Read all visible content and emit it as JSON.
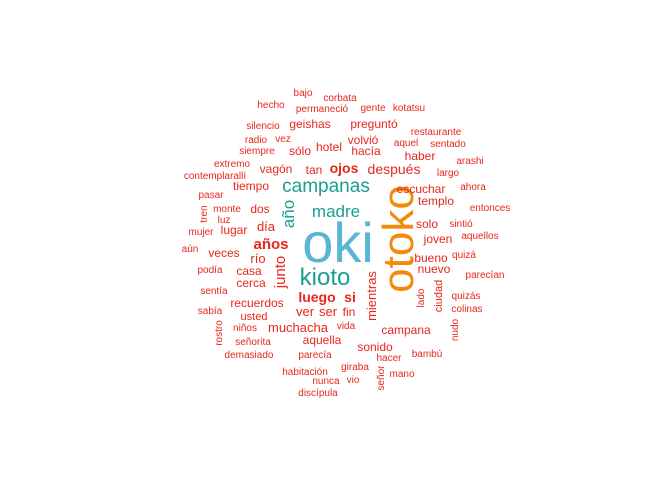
{
  "palette": {
    "cyan": "#5ab4d4",
    "orange": "#f28a0c",
    "teal": "#1a9e8f",
    "red": "#e8261e"
  },
  "words": [
    {
      "text": "oki",
      "color": "cyan"
    },
    {
      "text": "otoko",
      "color": "orange"
    },
    {
      "text": "kioto",
      "color": "teal"
    },
    {
      "text": "campanas",
      "color": "teal"
    },
    {
      "text": "año",
      "color": "teal"
    },
    {
      "text": "madre",
      "color": "teal"
    },
    {
      "text": "años",
      "color": "red"
    },
    {
      "text": "junto",
      "color": "red"
    },
    {
      "text": "luego",
      "color": "red"
    },
    {
      "text": "si",
      "color": "red"
    },
    {
      "text": "mientras",
      "color": "red"
    },
    {
      "text": "ojos",
      "color": "red"
    },
    {
      "text": "después",
      "color": "red"
    },
    {
      "text": "muchacha",
      "color": "red"
    },
    {
      "text": "campana",
      "color": "red"
    },
    {
      "text": "bajo",
      "color": "red"
    },
    {
      "text": "corbata",
      "color": "red"
    },
    {
      "text": "hecho",
      "color": "red"
    },
    {
      "text": "permaneció",
      "color": "red"
    },
    {
      "text": "gente",
      "color": "red"
    },
    {
      "text": "kotatsu",
      "color": "red"
    },
    {
      "text": "silencio",
      "color": "red"
    },
    {
      "text": "geishas",
      "color": "red"
    },
    {
      "text": "preguntó",
      "color": "red"
    },
    {
      "text": "restaurante",
      "color": "red"
    },
    {
      "text": "radio",
      "color": "red"
    },
    {
      "text": "vez",
      "color": "red"
    },
    {
      "text": "volvió",
      "color": "red"
    },
    {
      "text": "aquel",
      "color": "red"
    },
    {
      "text": "sentado",
      "color": "red"
    },
    {
      "text": "siempre",
      "color": "red"
    },
    {
      "text": "sólo",
      "color": "red"
    },
    {
      "text": "hotel",
      "color": "red"
    },
    {
      "text": "hacía",
      "color": "red"
    },
    {
      "text": "haber",
      "color": "red"
    },
    {
      "text": "arashi",
      "color": "red"
    },
    {
      "text": "extremo",
      "color": "red"
    },
    {
      "text": "vagón",
      "color": "red"
    },
    {
      "text": "tan",
      "color": "red"
    },
    {
      "text": "largo",
      "color": "red"
    },
    {
      "text": "contemplarallí",
      "color": "red"
    },
    {
      "text": "tiempo",
      "color": "red"
    },
    {
      "text": "escuchar",
      "color": "red"
    },
    {
      "text": "ahora",
      "color": "red"
    },
    {
      "text": "pasar",
      "color": "red"
    },
    {
      "text": "templo",
      "color": "red"
    },
    {
      "text": "monte",
      "color": "red"
    },
    {
      "text": "dos",
      "color": "red"
    },
    {
      "text": "entonces",
      "color": "red"
    },
    {
      "text": "tren",
      "color": "red"
    },
    {
      "text": "luz",
      "color": "red"
    },
    {
      "text": "sintió",
      "color": "red"
    },
    {
      "text": "mujer",
      "color": "red"
    },
    {
      "text": "lugar",
      "color": "red"
    },
    {
      "text": "día",
      "color": "red"
    },
    {
      "text": "solo",
      "color": "red"
    },
    {
      "text": "aquellos",
      "color": "red"
    },
    {
      "text": "joven",
      "color": "red"
    },
    {
      "text": "aún",
      "color": "red"
    },
    {
      "text": "veces",
      "color": "red"
    },
    {
      "text": "río",
      "color": "red"
    },
    {
      "text": "bueno",
      "color": "red"
    },
    {
      "text": "quizá",
      "color": "red"
    },
    {
      "text": "podía",
      "color": "red"
    },
    {
      "text": "casa",
      "color": "red"
    },
    {
      "text": "nuevo",
      "color": "red"
    },
    {
      "text": "parecían",
      "color": "red"
    },
    {
      "text": "cerca",
      "color": "red"
    },
    {
      "text": "ciudad",
      "color": "red"
    },
    {
      "text": "sentía",
      "color": "red"
    },
    {
      "text": "lado",
      "color": "red"
    },
    {
      "text": "quizás",
      "color": "red"
    },
    {
      "text": "recuerdos",
      "color": "red"
    },
    {
      "text": "colinas",
      "color": "red"
    },
    {
      "text": "sabía",
      "color": "red"
    },
    {
      "text": "ver",
      "color": "red"
    },
    {
      "text": "ser",
      "color": "red"
    },
    {
      "text": "fin",
      "color": "red"
    },
    {
      "text": "nudo",
      "color": "red"
    },
    {
      "text": "usted",
      "color": "red"
    },
    {
      "text": "niños",
      "color": "red"
    },
    {
      "text": "vida",
      "color": "red"
    },
    {
      "text": "rostro",
      "color": "red"
    },
    {
      "text": "aquella",
      "color": "red"
    },
    {
      "text": "señorita",
      "color": "red"
    },
    {
      "text": "sonido",
      "color": "red"
    },
    {
      "text": "demasiado",
      "color": "red"
    },
    {
      "text": "parecía",
      "color": "red"
    },
    {
      "text": "hacer",
      "color": "red"
    },
    {
      "text": "bambú",
      "color": "red"
    },
    {
      "text": "giraba",
      "color": "red"
    },
    {
      "text": "habitación",
      "color": "red"
    },
    {
      "text": "mano",
      "color": "red"
    },
    {
      "text": "nunca",
      "color": "red"
    },
    {
      "text": "vio",
      "color": "red"
    },
    {
      "text": "señor",
      "color": "red"
    },
    {
      "text": "discípula",
      "color": "red"
    }
  ]
}
